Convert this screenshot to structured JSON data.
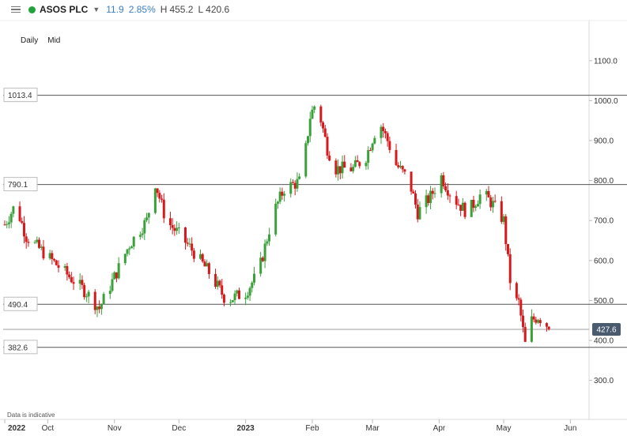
{
  "header": {
    "instrument": "ASOS PLC",
    "change": "11.9",
    "change_pct": "2.85%",
    "high_label": "H",
    "high": "455.2",
    "low_label": "L",
    "low": "420.6",
    "status_color": "#22a23a"
  },
  "toolbar": {
    "interval": "Daily",
    "type": "Mid"
  },
  "note": "Data is indicative",
  "colors": {
    "up": "#3aa13a",
    "down": "#d7191c",
    "line": "#222222"
  },
  "chart_data": {
    "type": "candlestick",
    "y_ticks": [
      300,
      400,
      500,
      600,
      700,
      800,
      900,
      1000,
      1100
    ],
    "y_tick_labels": [
      "300.0",
      "400.0",
      "500.0",
      "600.0",
      "700.0",
      "800.0",
      "900.0",
      "1000.0",
      "1100.0"
    ],
    "x_labels": [
      {
        "label": "2022",
        "bold": true,
        "day": 0
      },
      {
        "label": "Oct",
        "bold": false,
        "day": 20
      },
      {
        "label": "Nov",
        "bold": false,
        "day": 51
      },
      {
        "label": "Dec",
        "bold": false,
        "day": 81
      },
      {
        "label": "2023",
        "bold": true,
        "day": 112
      },
      {
        "label": "Feb",
        "bold": false,
        "day": 143
      },
      {
        "label": "Mar",
        "bold": false,
        "day": 171
      },
      {
        "label": "Apr",
        "bold": false,
        "day": 202
      },
      {
        "label": "May",
        "bold": false,
        "day": 232
      },
      {
        "label": "Jun",
        "bold": false,
        "day": 263
      }
    ],
    "levels": [
      {
        "label": "1013.4",
        "value": 1013.4
      },
      {
        "label": "790.1",
        "value": 790.1
      },
      {
        "label": "490.4",
        "value": 490.4
      },
      {
        "label": "382.6",
        "value": 382.6
      }
    ],
    "current": {
      "label": "427.6",
      "value": 427.6
    },
    "anchors": [
      [
        0,
        690
      ],
      [
        5,
        740
      ],
      [
        10,
        660
      ],
      [
        18,
        620
      ],
      [
        28,
        570
      ],
      [
        38,
        520
      ],
      [
        44,
        480
      ],
      [
        52,
        570
      ],
      [
        58,
        640
      ],
      [
        66,
        700
      ],
      [
        70,
        795
      ],
      [
        75,
        700
      ],
      [
        82,
        660
      ],
      [
        88,
        620
      ],
      [
        95,
        570
      ],
      [
        103,
        500
      ],
      [
        112,
        520
      ],
      [
        118,
        570
      ],
      [
        125,
        720
      ],
      [
        130,
        780
      ],
      [
        138,
        800
      ],
      [
        142,
        960
      ],
      [
        145,
        1000
      ],
      [
        150,
        880
      ],
      [
        154,
        830
      ],
      [
        162,
        830
      ],
      [
        168,
        860
      ],
      [
        174,
        950
      ],
      [
        178,
        900
      ],
      [
        182,
        840
      ],
      [
        188,
        800
      ],
      [
        192,
        720
      ],
      [
        198,
        760
      ],
      [
        203,
        810
      ],
      [
        208,
        760
      ],
      [
        215,
        720
      ],
      [
        222,
        770
      ],
      [
        227,
        740
      ],
      [
        232,
        700
      ],
      [
        236,
        500
      ],
      [
        239,
        495
      ],
      [
        242,
        390
      ],
      [
        245,
        450
      ],
      [
        248,
        460
      ],
      [
        252,
        440
      ],
      [
        253,
        427.6
      ]
    ]
  }
}
